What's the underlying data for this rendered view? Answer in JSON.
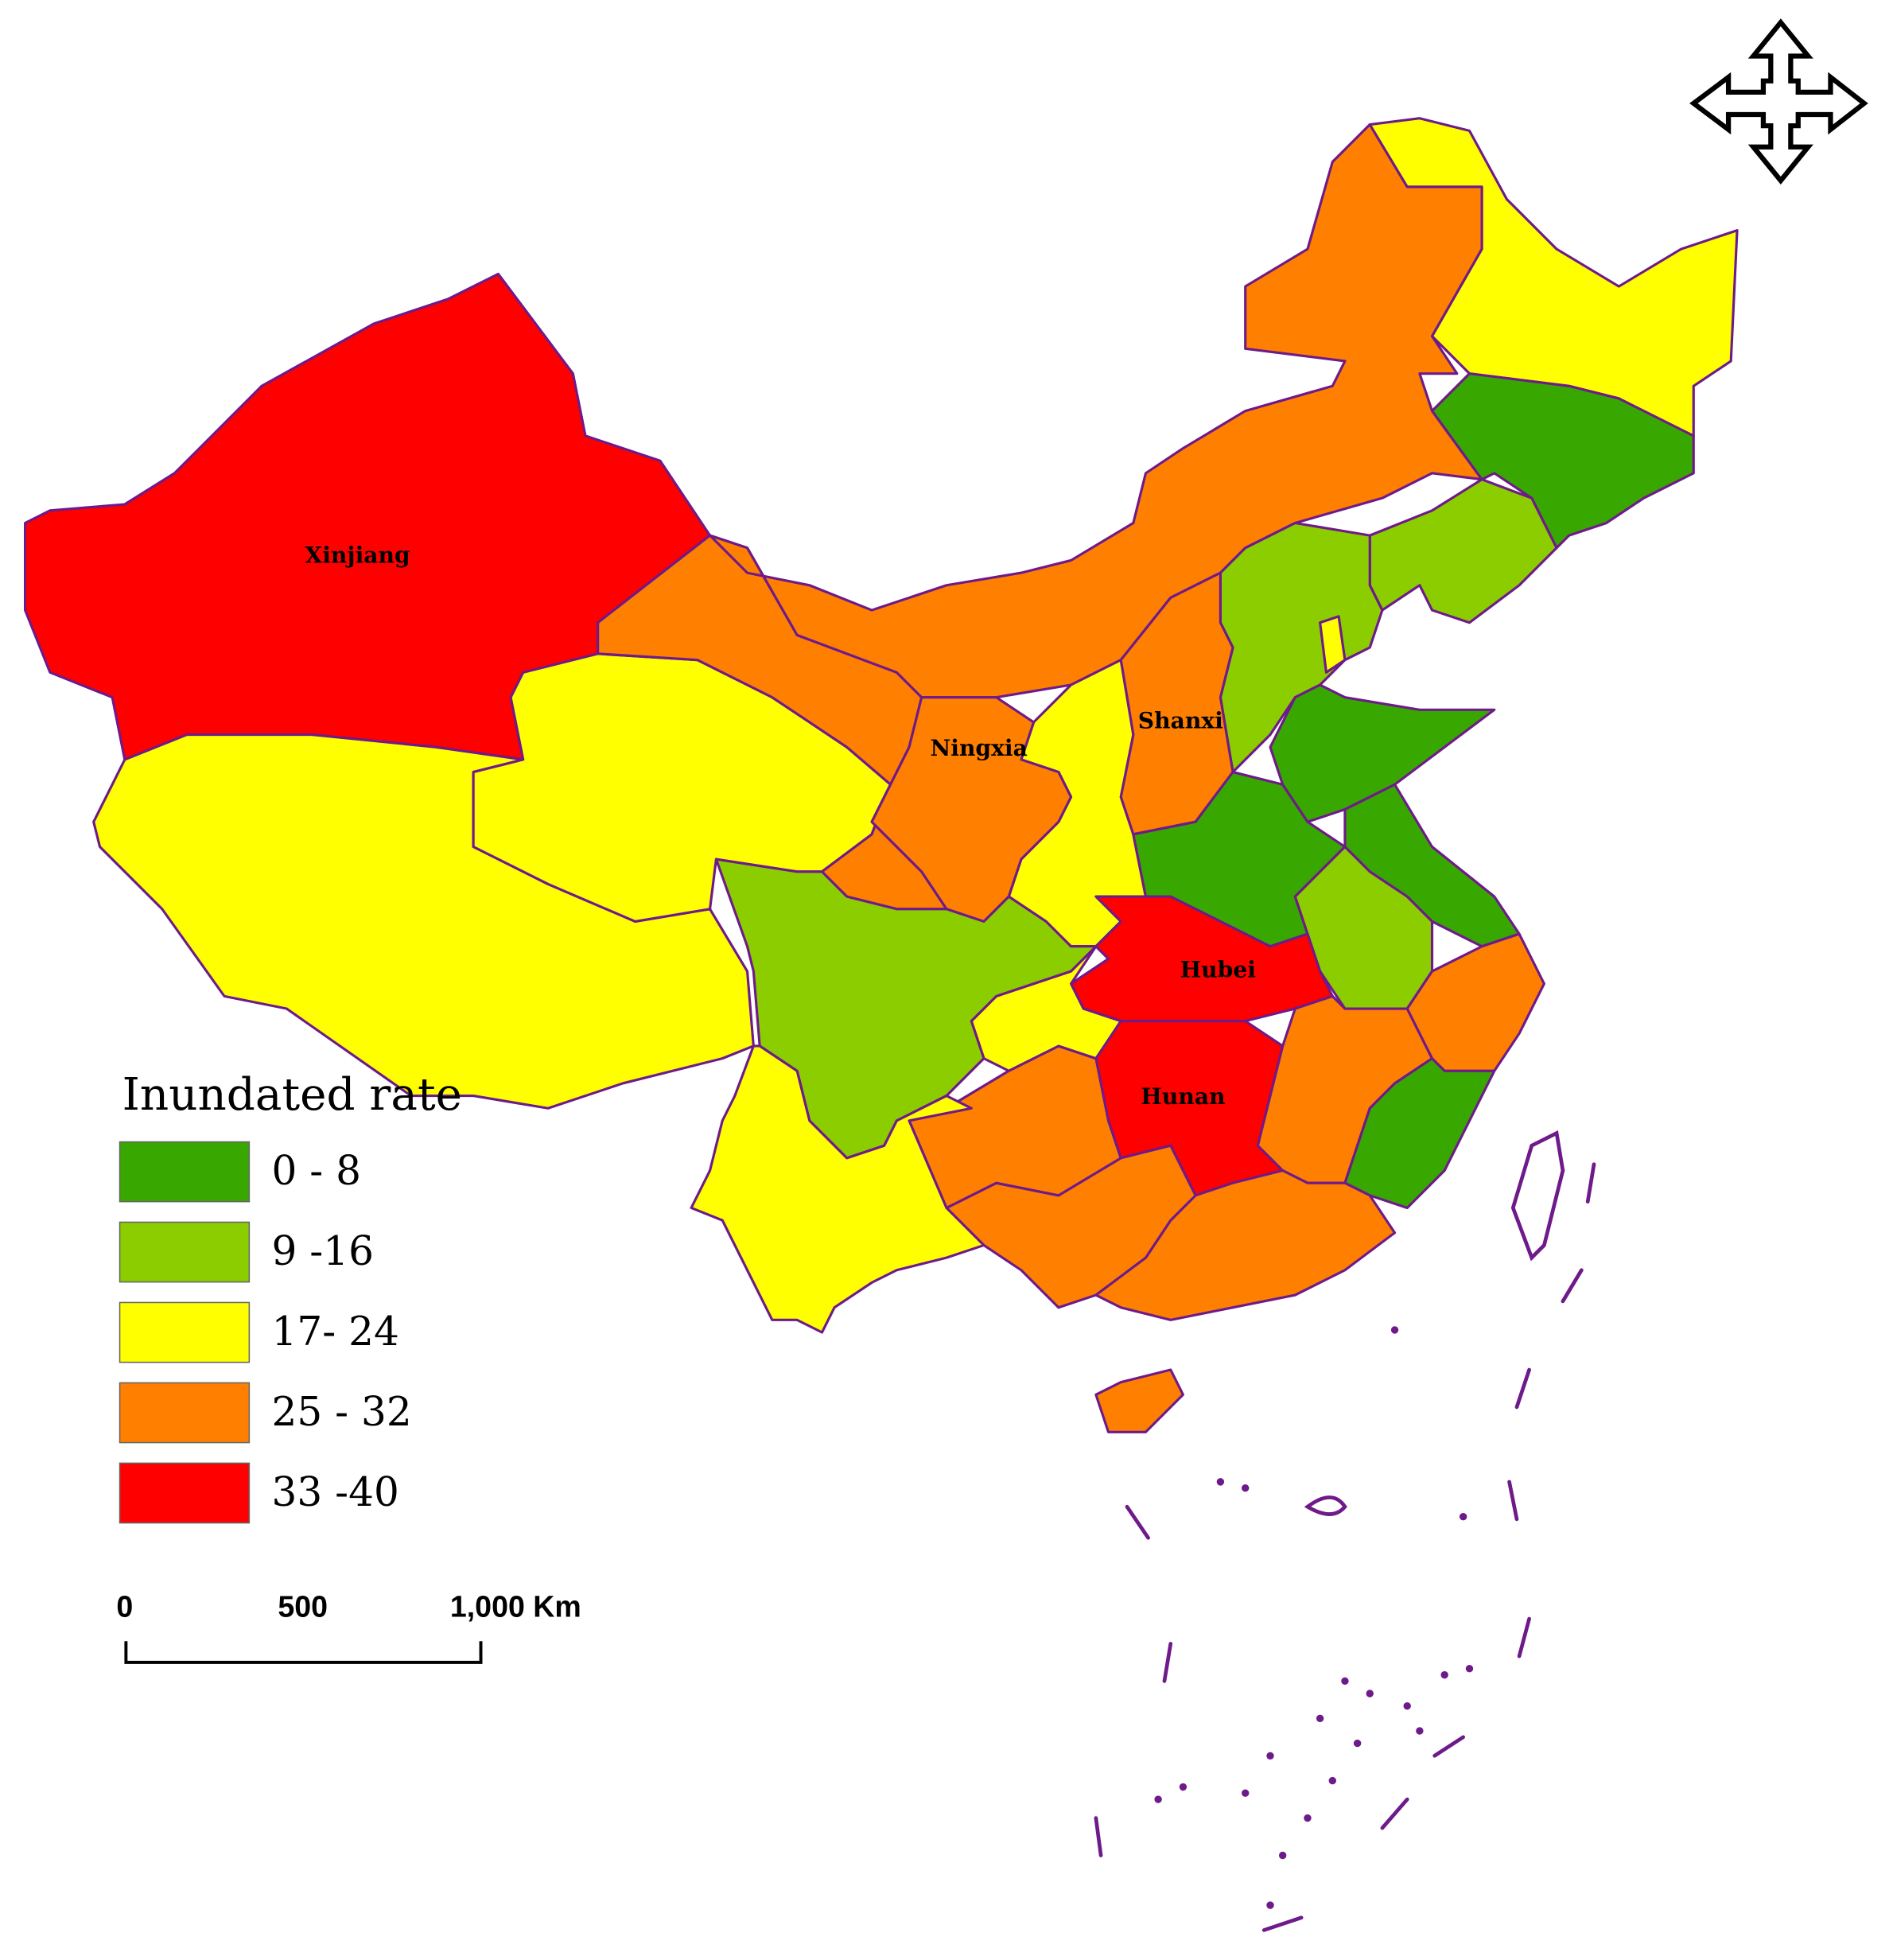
{
  "legend": {
    "title": "Inundated rate",
    "classes": [
      {
        "label": "0 - 8",
        "color": "#38a800"
      },
      {
        "label": "9 -16",
        "color": "#8ccd00"
      },
      {
        "label": "17- 24",
        "color": "#ffff00"
      },
      {
        "label": "25 - 32",
        "color": "#ff7f00"
      },
      {
        "label": "33 -40",
        "color": "#ff0000"
      }
    ]
  },
  "province_labels": [
    "Xinjiang",
    "Ningxia",
    "Shanxi",
    "Hubei",
    "Hunan"
  ],
  "scale_bar": {
    "labels": [
      "0",
      "500",
      "1,000 Km"
    ]
  }
}
